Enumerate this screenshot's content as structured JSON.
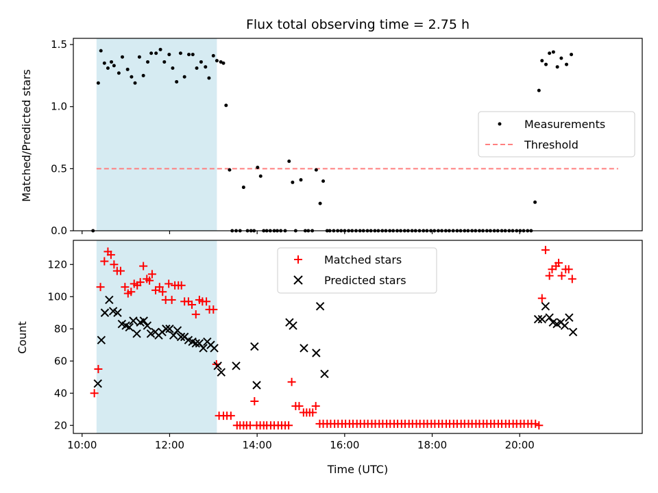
{
  "chart_data": [
    {
      "type": "scatter",
      "title": "Flux total observing time = 2.75 h",
      "ylabel": "Matched/Predicted stars",
      "xlabel": "",
      "x_unit": "hours UTC",
      "xlim": [
        9.8,
        22.8
      ],
      "ylim": [
        0,
        1.55
      ],
      "xticks": [
        10,
        12,
        14,
        16,
        18,
        20
      ],
      "yticks": [
        0.0,
        0.5,
        1.0,
        1.5
      ],
      "ytick_labels": [
        "0.0",
        "0.5",
        "1.0",
        "1.5"
      ],
      "grid": false,
      "legend": "center-right",
      "shaded_span": [
        10.33,
        13.08
      ],
      "shade_color": "#add8e6",
      "threshold": {
        "name": "Threshold",
        "value": 0.5,
        "x_range": [
          10.33,
          22.25
        ],
        "color": "#ff7f7f"
      },
      "series": [
        {
          "name": "Measurements",
          "color": "#000000",
          "marker": "dot",
          "x": [
            10.25,
            10.37,
            10.43,
            10.51,
            10.59,
            10.67,
            10.73,
            10.84,
            10.92,
            11.04,
            11.13,
            11.21,
            11.31,
            11.4,
            11.5,
            11.58,
            11.69,
            11.79,
            11.88,
            11.99,
            12.07,
            12.16,
            12.25,
            12.34,
            12.44,
            12.53,
            12.62,
            12.72,
            12.82,
            12.9,
            13.0,
            13.08,
            13.17,
            13.23,
            13.29,
            13.37,
            13.43,
            13.52,
            13.61,
            13.69,
            13.78,
            13.86,
            13.93,
            14.01,
            14.08,
            14.15,
            14.22,
            14.3,
            14.39,
            14.46,
            14.54,
            14.64,
            14.73,
            14.81,
            14.88,
            15.0,
            15.1,
            15.17,
            15.26,
            15.35,
            15.44,
            15.51,
            15.6,
            15.66,
            15.75,
            15.84,
            15.92,
            16.0,
            16.09,
            16.17,
            16.26,
            16.35,
            16.43,
            16.52,
            16.6,
            16.69,
            16.77,
            16.86,
            16.94,
            17.03,
            17.11,
            17.2,
            17.28,
            17.37,
            17.45,
            17.54,
            17.62,
            17.71,
            17.8,
            17.88,
            17.97,
            18.05,
            18.14,
            18.22,
            18.31,
            18.39,
            18.48,
            18.57,
            18.65,
            18.74,
            18.82,
            18.91,
            18.99,
            19.08,
            19.16,
            19.25,
            19.33,
            19.42,
            19.5,
            19.59,
            19.67,
            19.76,
            19.84,
            19.93,
            20.01,
            20.09,
            20.18,
            20.26,
            20.35,
            20.44,
            20.51,
            20.6,
            20.68,
            20.77,
            20.86,
            20.95,
            21.07,
            21.18
          ],
          "y": [
            0.0,
            1.19,
            1.45,
            1.35,
            1.31,
            1.36,
            1.33,
            1.27,
            1.4,
            1.3,
            1.24,
            1.19,
            1.4,
            1.25,
            1.36,
            1.43,
            1.43,
            1.46,
            1.36,
            1.42,
            1.31,
            1.2,
            1.43,
            1.24,
            1.42,
            1.42,
            1.31,
            1.36,
            1.32,
            1.23,
            1.41,
            1.37,
            1.36,
            1.35,
            1.01,
            0.49,
            0.0,
            0.0,
            0.0,
            0.35,
            0.0,
            0.0,
            0.0,
            0.51,
            0.44,
            0.0,
            0.0,
            0.0,
            0.0,
            0.0,
            0.0,
            0.0,
            0.56,
            0.39,
            0.0,
            0.41,
            0.0,
            0.0,
            0.0,
            0.49,
            0.22,
            0.4,
            0.0,
            0.0,
            0.0,
            0.0,
            0.0,
            0.0,
            0.0,
            0.0,
            0.0,
            0.0,
            0.0,
            0.0,
            0.0,
            0.0,
            0.0,
            0.0,
            0.0,
            0.0,
            0.0,
            0.0,
            0.0,
            0.0,
            0.0,
            0.0,
            0.0,
            0.0,
            0.0,
            0.0,
            0.0,
            0.0,
            0.0,
            0.0,
            0.0,
            0.0,
            0.0,
            0.0,
            0.0,
            0.0,
            0.0,
            0.0,
            0.0,
            0.0,
            0.0,
            0.0,
            0.0,
            0.0,
            0.0,
            0.0,
            0.0,
            0.0,
            0.0,
            0.0,
            0.0,
            0.0,
            0.0,
            0.0,
            0.23,
            1.13,
            1.37,
            1.34,
            1.43,
            1.44,
            1.32,
            1.39,
            1.34,
            1.42
          ]
        }
      ]
    },
    {
      "type": "scatter",
      "title": "",
      "xlabel": "Time (UTC)",
      "ylabel": "Count",
      "x_unit": "hours UTC",
      "xlim": [
        9.8,
        22.8
      ],
      "ylim": [
        15,
        135
      ],
      "xticks": [
        10,
        12,
        14,
        16,
        18,
        20
      ],
      "xtick_labels": [
        "10:00",
        "12:00",
        "14:00",
        "16:00",
        "18:00",
        "20:00"
      ],
      "yticks": [
        20,
        40,
        60,
        80,
        100,
        120
      ],
      "ytick_labels": [
        "20",
        "40",
        "60",
        "80",
        "100",
        "120"
      ],
      "grid": false,
      "legend": "top-center",
      "shaded_span": [
        10.33,
        13.08
      ],
      "shade_color": "#add8e6",
      "series": [
        {
          "name": "Matched stars",
          "color": "#ff0000",
          "marker": "plus",
          "x": [
            10.28,
            10.37,
            10.42,
            10.51,
            10.59,
            10.66,
            10.73,
            10.8,
            10.88,
            10.98,
            11.05,
            11.12,
            11.19,
            11.26,
            11.33,
            11.4,
            11.48,
            11.54,
            11.6,
            11.68,
            11.77,
            11.84,
            11.91,
            11.98,
            12.05,
            12.12,
            12.2,
            12.27,
            12.34,
            12.43,
            12.51,
            12.6,
            12.68,
            12.75,
            12.84,
            12.91,
            13.0,
            13.07,
            13.13,
            13.23,
            13.31,
            13.4,
            13.54,
            13.61,
            13.69,
            13.76,
            13.84,
            13.94,
            13.99,
            14.07,
            14.15,
            14.22,
            14.31,
            14.39,
            14.48,
            14.56,
            14.64,
            14.72,
            14.79,
            14.88,
            14.96,
            15.06,
            15.13,
            15.2,
            15.27,
            15.34,
            15.43,
            15.51,
            15.6,
            15.68,
            15.77,
            15.85,
            15.94,
            16.02,
            16.11,
            16.19,
            16.28,
            16.36,
            16.45,
            16.53,
            16.62,
            16.7,
            16.79,
            16.87,
            16.96,
            17.04,
            17.13,
            17.21,
            17.3,
            17.38,
            17.47,
            17.55,
            17.64,
            17.72,
            17.81,
            17.89,
            17.98,
            18.06,
            18.15,
            18.23,
            18.32,
            18.4,
            18.49,
            18.57,
            18.66,
            18.74,
            18.83,
            18.91,
            19.0,
            19.08,
            19.17,
            19.25,
            19.34,
            19.42,
            19.51,
            19.59,
            19.68,
            19.76,
            19.85,
            19.93,
            20.02,
            20.1,
            20.19,
            20.27,
            20.36,
            20.44,
            20.51,
            20.59,
            20.68,
            20.74,
            20.83,
            20.89,
            20.96,
            21.05,
            21.12,
            21.2
          ],
          "y": [
            40,
            55,
            106,
            122,
            128,
            126,
            120,
            116,
            116,
            106,
            102,
            103,
            108,
            107,
            109,
            119,
            111,
            110,
            114,
            104,
            106,
            103,
            98,
            108,
            98,
            107,
            107,
            107,
            97,
            97,
            95,
            89,
            98,
            97,
            97,
            92,
            92,
            58,
            26,
            26,
            26,
            26,
            20,
            20,
            20,
            20,
            20,
            35,
            20,
            20,
            20,
            20,
            20,
            20,
            20,
            20,
            20,
            20,
            47,
            32,
            32,
            28,
            28,
            28,
            28,
            32,
            21,
            21,
            21,
            21,
            21,
            21,
            21,
            21,
            21,
            21,
            21,
            21,
            21,
            21,
            21,
            21,
            21,
            21,
            21,
            21,
            21,
            21,
            21,
            21,
            21,
            21,
            21,
            21,
            21,
            21,
            21,
            21,
            21,
            21,
            21,
            21,
            21,
            21,
            21,
            21,
            21,
            21,
            21,
            21,
            21,
            21,
            21,
            21,
            21,
            21,
            21,
            21,
            21,
            21,
            21,
            21,
            21,
            21,
            21,
            20,
            99,
            129,
            113,
            117,
            119,
            121,
            113,
            117,
            117,
            111
          ]
        },
        {
          "name": "Predicted stars",
          "color": "#000000",
          "marker": "x",
          "x": [
            10.36,
            10.44,
            10.52,
            10.62,
            10.71,
            10.81,
            10.91,
            11.0,
            11.08,
            11.17,
            11.25,
            11.33,
            11.41,
            11.49,
            11.57,
            11.67,
            11.75,
            11.83,
            11.92,
            12.0,
            12.09,
            12.18,
            12.26,
            12.34,
            12.43,
            12.52,
            12.6,
            12.68,
            12.77,
            12.86,
            12.94,
            13.02,
            13.1,
            13.18,
            13.52,
            13.94,
            13.99,
            14.74,
            14.82,
            15.07,
            15.35,
            15.44,
            15.54,
            20.42,
            20.51,
            20.59,
            20.68,
            20.76,
            20.85,
            20.94,
            21.03,
            21.13,
            21.22
          ],
          "y": [
            46,
            73,
            90,
            98,
            91,
            90,
            83,
            82,
            81,
            85,
            77,
            84,
            85,
            82,
            77,
            78,
            76,
            78,
            80,
            80,
            76,
            79,
            75,
            75,
            73,
            72,
            71,
            71,
            68,
            72,
            70,
            68,
            57,
            53,
            57,
            69,
            45,
            84,
            82,
            68,
            65,
            94,
            52,
            86,
            86,
            94,
            87,
            84,
            83,
            84,
            82,
            87,
            78
          ]
        }
      ]
    }
  ]
}
